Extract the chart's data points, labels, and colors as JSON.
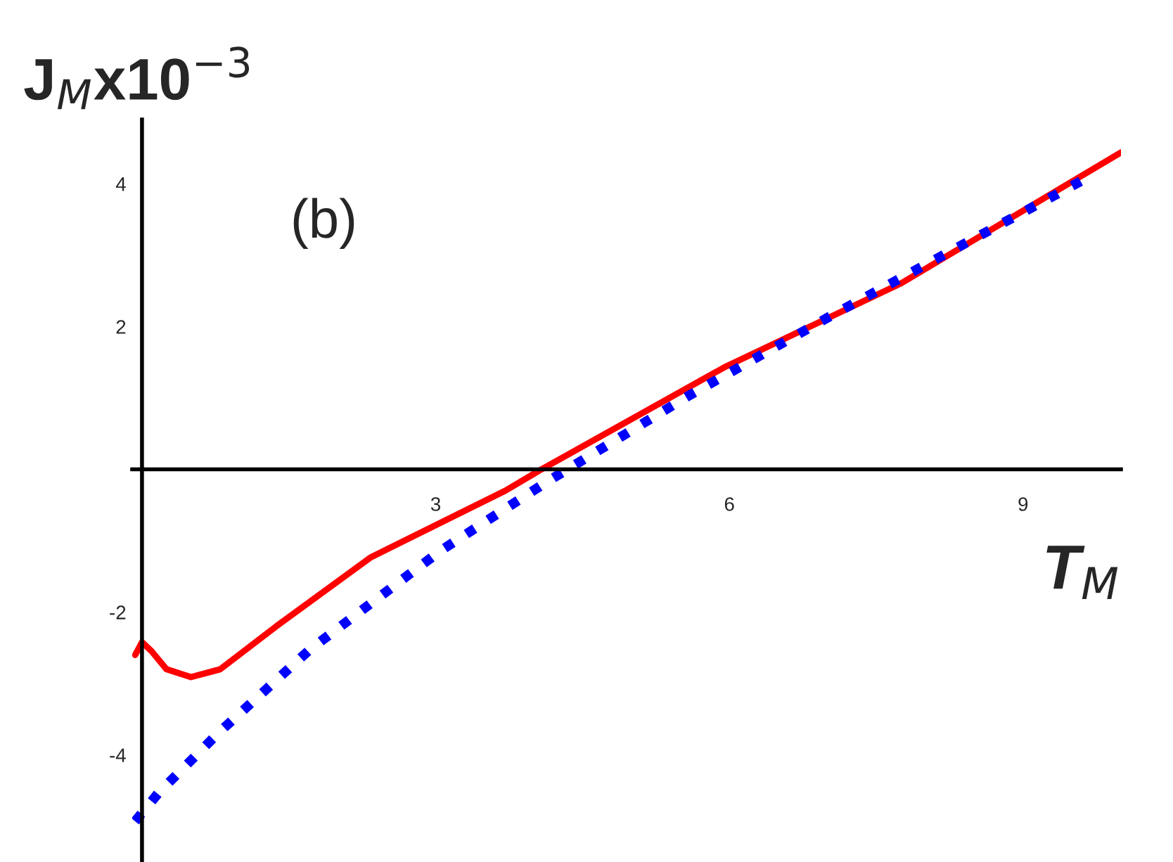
{
  "chart_data": {
    "type": "line",
    "xlabel": "T$_{M}$",
    "ylabel": "J$_{M}$x10$^{−3}$",
    "annotations": [
      "(b)"
    ],
    "xlim": [
      -0.1,
      10
    ],
    "ylim": [
      -5.5,
      4.9
    ],
    "xticks": [
      3,
      6,
      9
    ],
    "yticks": [
      -4,
      -2,
      2,
      4
    ],
    "grid": false,
    "series": [
      {
        "color": "#ff0000",
        "line_style": "solid",
        "x": [
          -0.07,
          0,
          0.1,
          0.25,
          0.5,
          0.8,
          1.37,
          2.34,
          3.71,
          4.08,
          5.95,
          7.76,
          10
        ],
        "values": [
          -2.6,
          -2.42,
          -2.55,
          -2.8,
          -2.91,
          -2.8,
          -2.2,
          -1.23,
          -0.3,
          0,
          1.43,
          2.61,
          4.44
        ]
      },
      {
        "color": "#0000ff",
        "line_style": "dotted",
        "x": [
          -0.07,
          0.17,
          0.79,
          1.71,
          2.73,
          3.05,
          4.13,
          5.57,
          7.05,
          8.55,
          9.65
        ],
        "values": [
          -4.93,
          -4.53,
          -3.68,
          -2.53,
          -1.47,
          -1.14,
          -0.18,
          1.02,
          2.16,
          3.27,
          4.08
        ]
      }
    ]
  }
}
